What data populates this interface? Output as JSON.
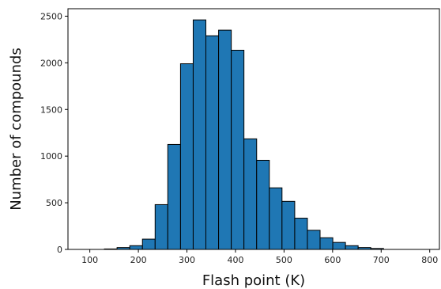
{
  "chart_data": {
    "type": "bar",
    "subtype": "histogram",
    "title": "",
    "xlabel": "Flash point (K)",
    "ylabel": "Number of compounds",
    "xlim": [
      55,
      820
    ],
    "ylim": [
      0,
      2580
    ],
    "xticks": [
      100,
      200,
      300,
      400,
      500,
      600,
      700,
      800
    ],
    "yticks": [
      0,
      500,
      1000,
      1500,
      2000,
      2500
    ],
    "bar_color": "#1f77b4",
    "edge_color": "#000000",
    "grid": false,
    "bins": [
      {
        "x0": 130.0,
        "x1": 156.1,
        "value": 5
      },
      {
        "x0": 156.1,
        "x1": 182.3,
        "value": 20
      },
      {
        "x0": 182.3,
        "x1": 208.4,
        "value": 40
      },
      {
        "x0": 208.4,
        "x1": 234.5,
        "value": 110
      },
      {
        "x0": 234.5,
        "x1": 260.6,
        "value": 480
      },
      {
        "x0": 260.6,
        "x1": 286.8,
        "value": 1125
      },
      {
        "x0": 286.8,
        "x1": 312.9,
        "value": 1990
      },
      {
        "x0": 312.9,
        "x1": 339.0,
        "value": 2460
      },
      {
        "x0": 339.0,
        "x1": 365.2,
        "value": 2290
      },
      {
        "x0": 365.2,
        "x1": 391.3,
        "value": 2350
      },
      {
        "x0": 391.3,
        "x1": 417.4,
        "value": 2135
      },
      {
        "x0": 417.4,
        "x1": 443.6,
        "value": 1185
      },
      {
        "x0": 443.6,
        "x1": 469.7,
        "value": 955
      },
      {
        "x0": 469.7,
        "x1": 495.8,
        "value": 660
      },
      {
        "x0": 495.8,
        "x1": 522.0,
        "value": 515
      },
      {
        "x0": 522.0,
        "x1": 548.1,
        "value": 335
      },
      {
        "x0": 548.1,
        "x1": 574.2,
        "value": 205
      },
      {
        "x0": 574.2,
        "x1": 600.4,
        "value": 125
      },
      {
        "x0": 600.4,
        "x1": 626.5,
        "value": 75
      },
      {
        "x0": 626.5,
        "x1": 652.6,
        "value": 40
      },
      {
        "x0": 652.6,
        "x1": 678.7,
        "value": 20
      },
      {
        "x0": 678.7,
        "x1": 704.9,
        "value": 10
      }
    ]
  }
}
